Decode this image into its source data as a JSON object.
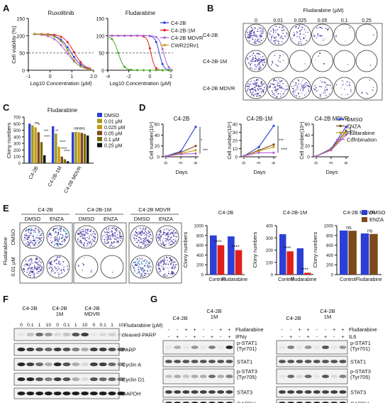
{
  "panels": {
    "A": {
      "letter": "A",
      "left": {
        "title": "Ruxolitinib",
        "ylabel": "Cell viability (%)",
        "xlabel": "Log10 Concentration (μM)",
        "xticks": [
          "-1",
          "0",
          "1",
          "2.0"
        ],
        "yticks": [
          "0",
          "50",
          "100",
          "150"
        ]
      },
      "right": {
        "title": "Fludarabine",
        "xlabel": "Log10 Concentration (μM)",
        "xticks": [
          "-4",
          "-2",
          "0",
          "2"
        ],
        "yticks": [
          "0",
          "50",
          "100",
          "150"
        ],
        "legend": [
          "C4-2B",
          "C4-2B-1M",
          "C4-2B MDVR",
          "CWR22Rv1"
        ]
      }
    },
    "B": {
      "letter": "B",
      "title": "Fludarabine (μM)",
      "cols": [
        "0",
        "0.01",
        "0.025",
        "0.05",
        "0.1",
        "0.25"
      ],
      "rows": [
        "C4-2B",
        "C4-2B-1M",
        "C4-2B MDVR"
      ]
    },
    "C": {
      "letter": "C",
      "title": "Fludarabine",
      "ylabel": "Clony numbers",
      "yticks": [
        "0",
        "100",
        "200",
        "300",
        "400",
        "500",
        "600",
        "700"
      ],
      "groups": [
        "C4-2B",
        "C4-2B-1M",
        "C4-2B MDVR"
      ],
      "legend": [
        "DMSO",
        "0.01 μM",
        "0.025 μM",
        "0.05 μM",
        "0.1 μM",
        "0.25 μM"
      ],
      "stars": [
        "ns",
        "*",
        "***",
        "****",
        "**",
        "****",
        "****",
        "****",
        "ns",
        "ns",
        "ns"
      ]
    },
    "D": {
      "letter": "D",
      "ylabel": "Cell number(10⁴)",
      "xlabel": "Days",
      "xticks": [
        "0",
        "3",
        "6"
      ],
      "plots": [
        {
          "title": "C4-2B",
          "yticks": [
            "0",
            "20",
            "40",
            "60"
          ]
        },
        {
          "title": "C4-2B-1M",
          "yticks": [
            "0",
            "10",
            "20",
            "30",
            "40"
          ]
        },
        {
          "title": "C4-2B MDVR",
          "yticks": [
            "0",
            "20",
            "40",
            "60"
          ]
        }
      ],
      "legend": [
        "DMSO",
        "ENZA",
        "Fludarabine",
        "Combination"
      ],
      "stars": [
        "*",
        "***",
        "***",
        "****",
        "***",
        "**"
      ]
    },
    "E": {
      "letter": "E",
      "col_groups": [
        "C4-2B",
        "C4-2B-1M",
        "C4-2B MDVR"
      ],
      "col_labels": [
        "DMSO",
        "ENZA"
      ],
      "row_labels": [
        "DMSO",
        "0.01 μM"
      ],
      "side_label": "Fludarabine",
      "bar_titles": [
        "C4-2B",
        "C4-2B-1M",
        "C4-2B MDVR"
      ],
      "bar_ylabel": "Clony numbers",
      "bar_x": [
        "Control",
        "Fludarabine"
      ],
      "legend": [
        "DMSO",
        "ENZA"
      ],
      "yticks_1": [
        "0",
        "200",
        "400",
        "600",
        "800",
        "1000"
      ],
      "yticks_2": [
        "0",
        "100",
        "200",
        "300",
        "400"
      ],
      "yticks_3": [
        "0",
        "200",
        "400",
        "600",
        "800",
        "1000"
      ],
      "stars": [
        "****",
        "****",
        "****",
        "****",
        "ns",
        "ns"
      ]
    },
    "F": {
      "letter": "F",
      "groups": [
        "C4-2B",
        "C4-2B\n1M",
        "C4-2B\nMDVR"
      ],
      "doses": [
        "0",
        "0.1",
        "1",
        "10",
        "0",
        "0.1",
        "1",
        "10",
        "0",
        "0.1",
        "1",
        "10"
      ],
      "dose_label": "Fludarabine (μM)",
      "blots": [
        "cleaved-PARP",
        "PARP",
        "Cyclin A",
        "Cyclin D1",
        "GAPDH"
      ]
    },
    "G": {
      "letter": "G",
      "left": {
        "groups": [
          "C4-2B",
          "C4-2B\n1M"
        ],
        "treat1": "Fludarabine",
        "treat2": "IFNγ",
        "signs1": [
          "-",
          "-",
          "+",
          "+",
          "-",
          "-",
          "+",
          "+"
        ],
        "signs2": [
          "-",
          "+",
          "-",
          "+",
          "-",
          "+",
          "-",
          "+"
        ],
        "blots": [
          "p-STAT1\n(Tyr701)",
          "STAT1",
          "p-STAT3\n(Tyr705)",
          "STAT3",
          "GAPDH"
        ]
      },
      "right": {
        "groups": [
          "C4-2B",
          "C4-2B\n1M"
        ],
        "treat1": "Fludarabine",
        "treat2": "IL6",
        "signs1": [
          "-",
          "-",
          "+",
          "+",
          "-",
          "-",
          "+",
          "+"
        ],
        "signs2": [
          "-",
          "+",
          "-",
          "+",
          "-",
          "+",
          "-",
          "+"
        ],
        "blots": [
          "p-STAT1\n(Tyr701)",
          "STAT1",
          "p-STAT3\n(Tyr705)",
          "STAT3",
          "GAPDH"
        ]
      }
    }
  },
  "colors": {
    "blue": "#2b3fd6",
    "red": "#e0201b",
    "purple": "#b061d9",
    "olive": "#a39a1a",
    "green": "#43a823",
    "gold": "#c99a18",
    "darkgold": "#7a6a0d",
    "brown": "#7b4a18",
    "pink": "#e2a1b8",
    "black": "#111111"
  }
}
